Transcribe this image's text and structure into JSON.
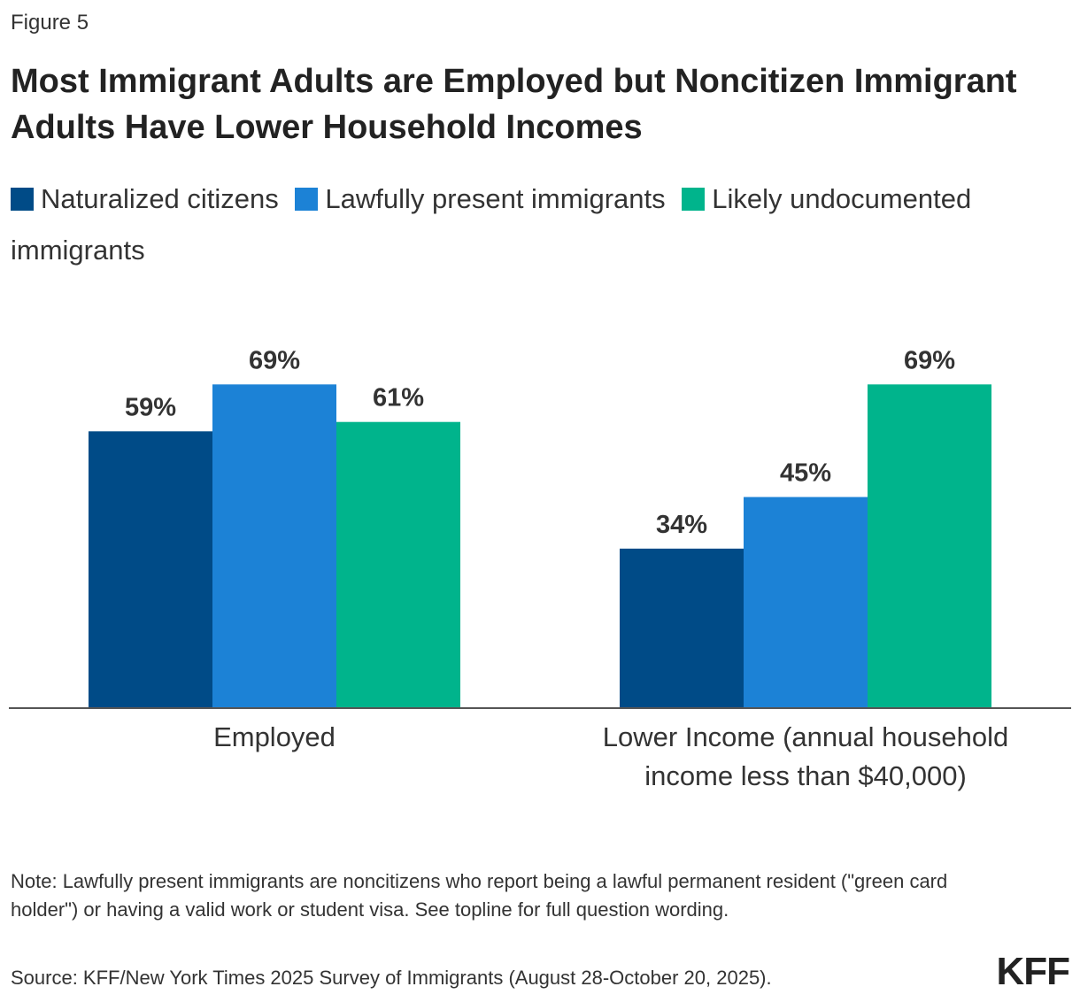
{
  "figure_label": "Figure 5",
  "title": "Most Immigrant Adults are Employed but Noncitizen Immigrant Adults Have Lower Household Incomes",
  "note": "Note: Lawfully present immigrants are noncitizens who report being a lawful permanent resident (\"green card holder\") or having a valid work or student visa. See topline for full question wording.",
  "source": "Source: KFF/New York Times 2025 Survey of Immigrants (August 28-October 20, 2025).",
  "logo": "KFF",
  "colors": {
    "naturalized": "#004B87",
    "lawful": "#1C82D6",
    "undocumented": "#00B48C",
    "baseline": "#555555"
  },
  "chart_data": {
    "type": "bar",
    "categories": [
      [
        "Employed"
      ],
      [
        "Lower Income (annual household",
        "income less than $40,000)"
      ]
    ],
    "series": [
      {
        "name": "Naturalized citizens",
        "values": [
          59,
          34
        ],
        "color": "#004B87"
      },
      {
        "name": "Lawfully present immigrants",
        "values": [
          69,
          45
        ],
        "color": "#1C82D6"
      },
      {
        "name": "Likely undocumented immigrants",
        "values": [
          61,
          69
        ],
        "color": "#00B48C"
      }
    ],
    "value_suffix": "%",
    "ylim": [
      0,
      100
    ],
    "grid": false,
    "legend_position": "top"
  }
}
